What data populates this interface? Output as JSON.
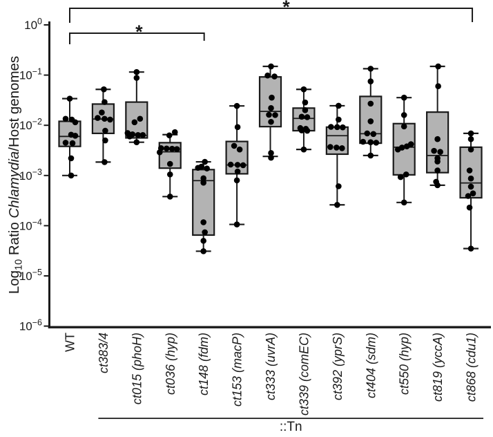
{
  "figure_title": "Chlamydia transposon mutant infection boxplot",
  "colors": {
    "box_fill": "#b3b3b3",
    "line": "#1a1a1a",
    "point": "#000000",
    "background": "#ffffff"
  },
  "chart_data": {
    "type": "box",
    "scale": "log10",
    "ylim": [
      1e-06,
      1
    ],
    "grid": false,
    "ylabel_parts": [
      {
        "text": "Log",
        "style": "normal"
      },
      {
        "text": "10",
        "style": "sub"
      },
      {
        "text": " Ratio ",
        "style": "normal"
      },
      {
        "text": "Chlamydia",
        "style": "italic"
      },
      {
        "text": "/Host genomes",
        "style": "normal"
      }
    ],
    "yticks": [
      {
        "mantissa": "10",
        "exponent": "0"
      },
      {
        "mantissa": "10",
        "exponent": "−1"
      },
      {
        "mantissa": "10",
        "exponent": "−2"
      },
      {
        "mantissa": "10",
        "exponent": "−3"
      },
      {
        "mantissa": "10",
        "exponent": "−4"
      },
      {
        "mantissa": "10",
        "exponent": "−5"
      },
      {
        "mantissa": "10",
        "exponent": "−6"
      }
    ],
    "group": {
      "label": "::Tn",
      "from_index": 1,
      "to_index": 12
    },
    "significance_brackets": [
      {
        "from_index": 0,
        "to_index": 12,
        "label": "*",
        "row": "outer"
      },
      {
        "from_index": 0,
        "to_index": 4,
        "label": "*",
        "row": "inner"
      }
    ],
    "categories": [
      {
        "label": "WT",
        "italic": false,
        "box": {
          "whisker_low": 0.001,
          "q1": 0.0038,
          "median": 0.006,
          "q3": 0.012,
          "whisker_high": 0.034
        },
        "points": [
          [
            0.034,
            0
          ],
          [
            0.0135,
            -6
          ],
          [
            0.013,
            3
          ],
          [
            0.0115,
            8
          ],
          [
            0.0065,
            2
          ],
          [
            0.0062,
            8
          ],
          [
            0.0045,
            -6
          ],
          [
            0.0044,
            4
          ],
          [
            0.0022,
            2
          ],
          [
            0.001,
            2
          ]
        ]
      },
      {
        "label": "ct383/4",
        "italic": true,
        "box": {
          "whisker_low": 0.00185,
          "q1": 0.0069,
          "median": 0.0133,
          "q3": 0.0265,
          "whisker_high": 0.052
        },
        "points": [
          [
            0.052,
            1
          ],
          [
            0.029,
            2
          ],
          [
            0.018,
            -2
          ],
          [
            0.014,
            -8
          ],
          [
            0.0135,
            2
          ],
          [
            0.013,
            10
          ],
          [
            0.0078,
            3
          ],
          [
            0.005,
            3
          ],
          [
            0.00185,
            2
          ]
        ]
      },
      {
        "label": "ct015 (phoH)",
        "italic": true,
        "box": {
          "whisker_low": 0.0046,
          "q1": 0.0056,
          "median": 0.0063,
          "q3": 0.029,
          "whisker_high": 0.115
        },
        "points": [
          [
            0.115,
            0
          ],
          [
            0.088,
            0
          ],
          [
            0.0135,
            5
          ],
          [
            0.0115,
            -3
          ],
          [
            0.007,
            -13
          ],
          [
            0.0066,
            -6
          ],
          [
            0.0064,
            2
          ],
          [
            0.0064,
            9
          ],
          [
            0.006,
            -10
          ],
          [
            0.0046,
            0
          ]
        ]
      },
      {
        "label": "ct036 (hyp)",
        "italic": true,
        "box": {
          "whisker_low": 0.00038,
          "q1": 0.0014,
          "median": 0.00296,
          "q3": 0.0045,
          "whisker_high": 0.0065
        },
        "points": [
          [
            0.0073,
            7
          ],
          [
            0.0063,
            -1
          ],
          [
            0.0035,
            -13
          ],
          [
            0.00345,
            -5
          ],
          [
            0.0034,
            3
          ],
          [
            0.00335,
            10
          ],
          [
            0.0029,
            -15
          ],
          [
            0.0017,
            0
          ],
          [
            0.00105,
            0
          ],
          [
            0.00038,
            0
          ]
        ]
      },
      {
        "label": "ct148 (fdm)",
        "italic": true,
        "box": {
          "whisker_low": 3.1e-05,
          "q1": 6.5e-05,
          "median": 0.00079,
          "q3": 0.00131,
          "whisker_high": 0.00187
        },
        "points": [
          [
            0.00187,
            2
          ],
          [
            0.0015,
            -3
          ],
          [
            0.00142,
            -8
          ],
          [
            0.00138,
            5
          ],
          [
            0.00088,
            0
          ],
          [
            0.00072,
            0
          ],
          [
            0.000117,
            0
          ],
          [
            7.4e-05,
            2
          ],
          [
            5e-05,
            0
          ],
          [
            3.1e-05,
            0
          ]
        ]
      },
      {
        "label": "ct153 (macP)",
        "italic": true,
        "box": {
          "whisker_low": 0.000106,
          "q1": 0.00108,
          "median": 0.00162,
          "q3": 0.00476,
          "whisker_high": 0.0243
        },
        "points": [
          [
            0.0243,
            0
          ],
          [
            0.0092,
            1
          ],
          [
            0.0039,
            -4
          ],
          [
            0.0033,
            4
          ],
          [
            0.00165,
            -9
          ],
          [
            0.00163,
            1
          ],
          [
            0.0016,
            9
          ],
          [
            0.0012,
            1
          ],
          [
            0.0008,
            0
          ],
          [
            0.000106,
            0
          ]
        ]
      },
      {
        "label": "ct333 (uvrA)",
        "italic": true,
        "box": {
          "whisker_low": 0.0024,
          "q1": 0.0094,
          "median": 0.0189,
          "q3": 0.092,
          "whisker_high": 0.149
        },
        "points": [
          [
            0.149,
            1
          ],
          [
            0.098,
            -4
          ],
          [
            0.094,
            6
          ],
          [
            0.0356,
            2
          ],
          [
            0.022,
            1
          ],
          [
            0.0162,
            -2
          ],
          [
            0.016,
            7
          ],
          [
            0.0117,
            1
          ],
          [
            0.0028,
            1
          ],
          [
            0.00226,
            1
          ]
        ]
      },
      {
        "label": "ct339 (comEC)",
        "italic": true,
        "box": {
          "whisker_low": 0.0033,
          "q1": 0.0078,
          "median": 0.0137,
          "q3": 0.022,
          "whisker_high": 0.052
        },
        "points": [
          [
            0.052,
            0
          ],
          [
            0.0285,
            2
          ],
          [
            0.02,
            2
          ],
          [
            0.0148,
            -3
          ],
          [
            0.0145,
            5
          ],
          [
            0.0088,
            -5
          ],
          [
            0.0085,
            3
          ],
          [
            0.0079,
            -3
          ],
          [
            0.0078,
            5
          ],
          [
            0.0033,
            0
          ]
        ]
      },
      {
        "label": "ct392 (yprS)",
        "italic": true,
        "box": {
          "whisker_low": 0.00026,
          "q1": 0.00266,
          "median": 0.0062,
          "q3": 0.0092,
          "whisker_high": 0.0245
        },
        "points": [
          [
            0.0245,
            2
          ],
          [
            0.013,
            2
          ],
          [
            0.0093,
            -9
          ],
          [
            0.0092,
            0
          ],
          [
            0.0091,
            8
          ],
          [
            0.0037,
            -10
          ],
          [
            0.0036,
            -1
          ],
          [
            0.0035,
            7
          ],
          [
            0.00061,
            2
          ],
          [
            0.00026,
            0
          ]
        ]
      },
      {
        "label": "ct404 (sdm)",
        "italic": true,
        "box": {
          "whisker_low": 0.0025,
          "q1": 0.0044,
          "median": 0.0068,
          "q3": 0.0376,
          "whisker_high": 0.134
        },
        "points": [
          [
            0.134,
            0
          ],
          [
            0.075,
            0
          ],
          [
            0.027,
            0
          ],
          [
            0.012,
            0
          ],
          [
            0.0069,
            -5
          ],
          [
            0.0067,
            4
          ],
          [
            0.0047,
            -11
          ],
          [
            0.0046,
            0
          ],
          [
            0.0045,
            8
          ],
          [
            0.0025,
            0
          ]
        ]
      },
      {
        "label": "ct550 (hyp)",
        "italic": true,
        "box": {
          "whisker_low": 0.00029,
          "q1": 0.00103,
          "median": 0.00366,
          "q3": 0.0108,
          "whisker_high": 0.0356
        },
        "points": [
          [
            0.0356,
            0
          ],
          [
            0.016,
            0
          ],
          [
            0.0095,
            0
          ],
          [
            0.0042,
            10
          ],
          [
            0.0038,
            4
          ],
          [
            0.0036,
            -3
          ],
          [
            0.0033,
            -9
          ],
          [
            0.00105,
            3
          ],
          [
            0.00093,
            -5
          ],
          [
            0.00029,
            0
          ]
        ]
      },
      {
        "label": "ct819 (yccA)",
        "italic": true,
        "box": {
          "whisker_low": 0.00064,
          "q1": 0.00114,
          "median": 0.0025,
          "q3": 0.0183,
          "whisker_high": 0.149
        },
        "points": [
          [
            0.149,
            1
          ],
          [
            0.06,
            1
          ],
          [
            0.0053,
            0
          ],
          [
            0.0031,
            -5
          ],
          [
            0.00295,
            4
          ],
          [
            0.0022,
            0
          ],
          [
            0.0019,
            0
          ],
          [
            0.00126,
            0
          ],
          [
            0.00075,
            -2
          ],
          [
            0.00064,
            0
          ]
        ]
      },
      {
        "label": "ct868 (cdu1)",
        "italic": true,
        "box": {
          "whisker_low": 3.5e-05,
          "q1": 0.00036,
          "median": 0.00071,
          "q3": 0.00366,
          "whisker_high": 0.0069
        },
        "points": [
          [
            0.0069,
            0
          ],
          [
            0.0053,
            0
          ],
          [
            0.0033,
            0
          ],
          [
            0.00126,
            -2
          ],
          [
            0.00087,
            0
          ],
          [
            0.0006,
            0
          ],
          [
            0.00044,
            3
          ],
          [
            0.00039,
            -4
          ],
          [
            0.00023,
            -2
          ],
          [
            3.5e-05,
            0
          ]
        ]
      }
    ]
  }
}
